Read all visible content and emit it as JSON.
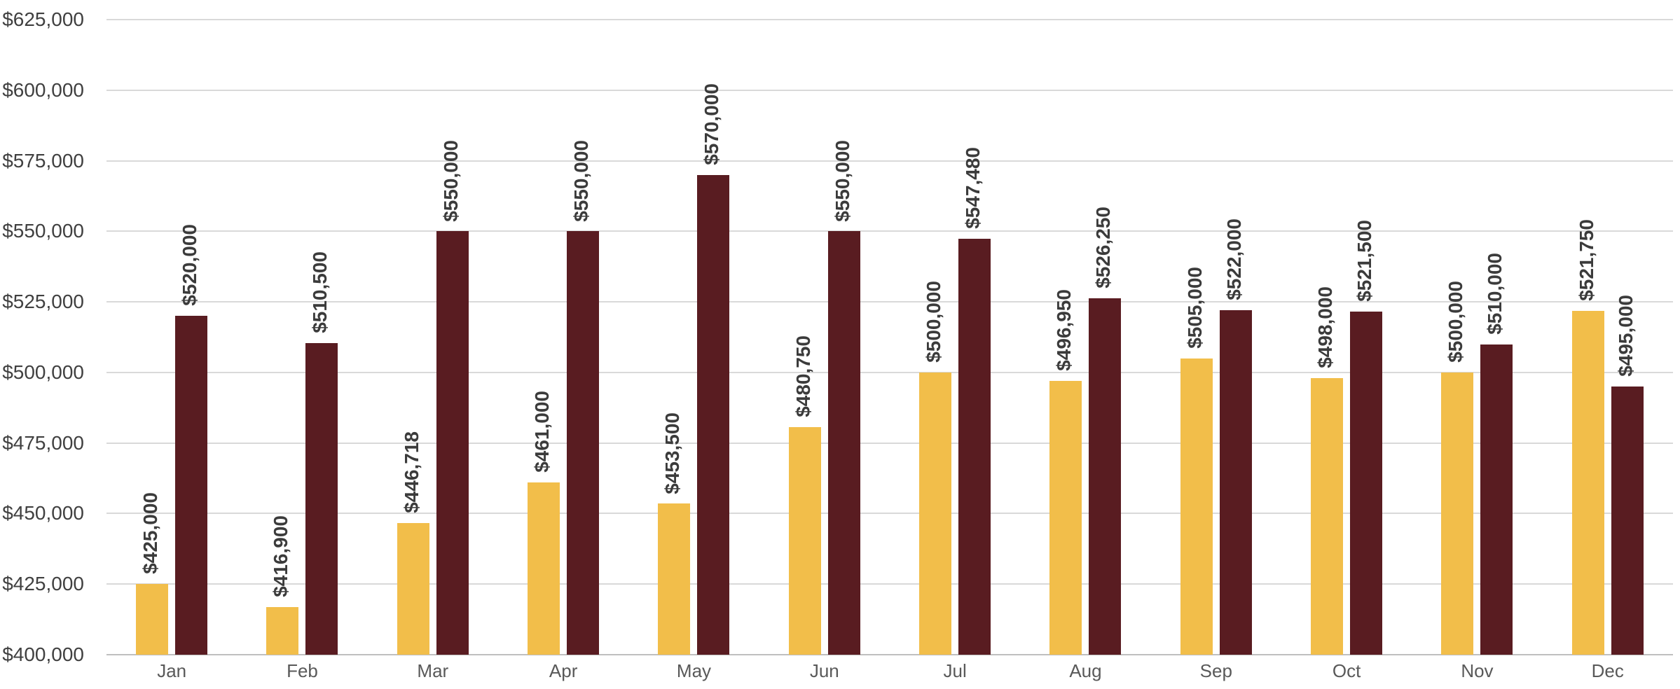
{
  "chart_data": {
    "type": "bar",
    "title": "",
    "legend": "none",
    "grid": true,
    "categories": [
      "Jan",
      "Feb",
      "Mar",
      "Apr",
      "May",
      "Jun",
      "Jul",
      "Aug",
      "Sep",
      "Oct",
      "Nov",
      "Dec"
    ],
    "series": [
      {
        "name": "series-1-gold",
        "color": "#F2BE4A",
        "values": [
          425000,
          416900,
          446718,
          461000,
          453500,
          480750,
          500000,
          496950,
          505000,
          498000,
          500000,
          521750
        ],
        "labels": [
          "$425,000",
          "$416,900",
          "$446,718",
          "$461,000",
          "$453,500",
          "$480,750",
          "$500,000",
          "$496,950",
          "$505,000",
          "$498,000",
          "$500,000",
          "$521,750"
        ]
      },
      {
        "name": "series-2-maroon",
        "color": "#591C21",
        "values": [
          520000,
          510500,
          550000,
          550000,
          570000,
          550000,
          547480,
          526250,
          522000,
          521500,
          510000,
          495000
        ],
        "labels": [
          "$520,000",
          "$510,500",
          "$550,000",
          "$550,000",
          "$570,000",
          "$550,000",
          "$547,480",
          "$526,250",
          "$522,000",
          "$521,500",
          "$510,000",
          "$495,000"
        ]
      }
    ],
    "y_axis": {
      "min": 400000,
      "max": 625000,
      "step": 25000,
      "tick_labels": [
        "$625,000",
        "$600,000",
        "$575,000",
        "$550,000",
        "$525,000",
        "$500,000",
        "$475,000",
        "$450,000",
        "$425,000",
        "$400,000"
      ]
    }
  },
  "colors": {
    "background": "#FFFFFF",
    "gridline": "#D9D9D9",
    "axis_line": "#BFBFBF",
    "axis_text": "#404040",
    "x_label_text": "#595959",
    "data_label_text": "#3B3B3B"
  }
}
